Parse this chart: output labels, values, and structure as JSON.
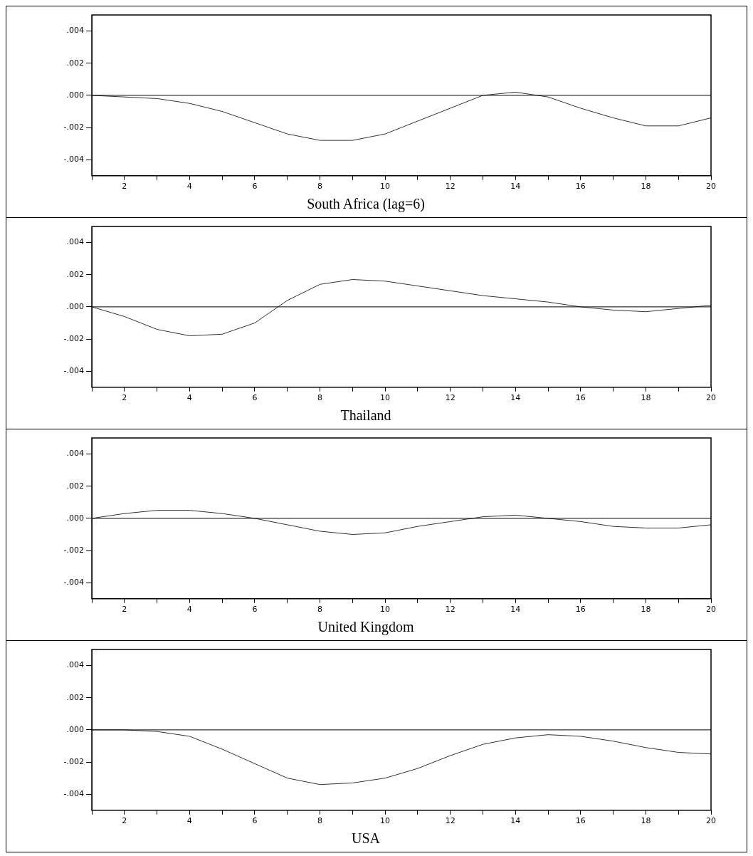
{
  "chart_data": [
    {
      "type": "line",
      "title": "South Africa (lag=6)",
      "x": [
        1,
        2,
        3,
        4,
        5,
        6,
        7,
        8,
        9,
        10,
        11,
        12,
        13,
        14,
        15,
        16,
        17,
        18,
        19,
        20
      ],
      "series": [
        {
          "color": "#333333",
          "values": [
            0,
            -0.0001,
            -0.0002,
            -0.0005,
            -0.001,
            -0.0017,
            -0.0024,
            -0.0028,
            -0.0028,
            -0.0024,
            -0.0016,
            -0.0008,
            0,
            0.0002,
            -0.0001,
            -0.0008,
            -0.0014,
            -0.0019,
            -0.0019,
            -0.0014
          ]
        }
      ],
      "xlim": [
        1,
        20
      ],
      "xticks": [
        {
          "value": 1,
          "label": null
        },
        2,
        {
          "value": 3,
          "label": null
        },
        4,
        {
          "value": 5,
          "label": null
        },
        6,
        {
          "value": 7,
          "label": null
        },
        8,
        {
          "value": 9,
          "label": null
        },
        10,
        {
          "value": 11,
          "label": null
        },
        12,
        {
          "value": 13,
          "label": null
        },
        14,
        {
          "value": 15,
          "label": null
        },
        16,
        {
          "value": 17,
          "label": null
        },
        18,
        {
          "value": 19,
          "label": null
        },
        20
      ],
      "ylim": [
        -0.005,
        0.005
      ],
      "yticks": [
        {
          "value": -0.004,
          "label": "-.004"
        },
        {
          "value": -0.002,
          "label": "-.002"
        },
        {
          "value": 0,
          "label": ".000"
        },
        {
          "value": 0.002,
          "label": ".002"
        },
        {
          "value": 0.004,
          "label": ".004"
        }
      ],
      "ref_lines": [
        {
          "axis": "y",
          "value": 0,
          "color": "#000000"
        }
      ],
      "grid": false,
      "legend": false,
      "marker": "none",
      "line_style": "solid"
    },
    {
      "type": "line",
      "title": "Thailand",
      "x": [
        1,
        2,
        3,
        4,
        5,
        6,
        7,
        8,
        9,
        10,
        11,
        12,
        13,
        14,
        15,
        16,
        17,
        18,
        19,
        20
      ],
      "series": [
        {
          "color": "#333333",
          "values": [
            0,
            -0.0006,
            -0.0014,
            -0.0018,
            -0.0017,
            -0.001,
            0.0004,
            0.0014,
            0.0017,
            0.0016,
            0.0013,
            0.001,
            0.0007,
            0.0005,
            0.0003,
            0,
            -0.0002,
            -0.0003,
            -0.0001,
            0.0001
          ]
        }
      ],
      "xlim": [
        1,
        20
      ],
      "xticks": [
        {
          "value": 1,
          "label": null
        },
        2,
        {
          "value": 3,
          "label": null
        },
        4,
        {
          "value": 5,
          "label": null
        },
        6,
        {
          "value": 7,
          "label": null
        },
        8,
        {
          "value": 9,
          "label": null
        },
        10,
        {
          "value": 11,
          "label": null
        },
        12,
        {
          "value": 13,
          "label": null
        },
        14,
        {
          "value": 15,
          "label": null
        },
        16,
        {
          "value": 17,
          "label": null
        },
        18,
        {
          "value": 19,
          "label": null
        },
        20
      ],
      "ylim": [
        -0.005,
        0.005
      ],
      "yticks": [
        {
          "value": -0.004,
          "label": "-.004"
        },
        {
          "value": -0.002,
          "label": "-.002"
        },
        {
          "value": 0,
          "label": ".000"
        },
        {
          "value": 0.002,
          "label": ".002"
        },
        {
          "value": 0.004,
          "label": ".004"
        }
      ],
      "ref_lines": [
        {
          "axis": "y",
          "value": 0,
          "color": "#000000"
        }
      ],
      "grid": false,
      "legend": false,
      "marker": "none",
      "line_style": "solid"
    },
    {
      "type": "line",
      "title": "United Kingdom",
      "x": [
        1,
        2,
        3,
        4,
        5,
        6,
        7,
        8,
        9,
        10,
        11,
        12,
        13,
        14,
        15,
        16,
        17,
        18,
        19,
        20
      ],
      "series": [
        {
          "color": "#333333",
          "values": [
            0,
            0.0003,
            0.0005,
            0.0005,
            0.0003,
            0,
            -0.0004,
            -0.0008,
            -0.001,
            -0.0009,
            -0.0005,
            -0.0002,
            0.0001,
            0.0002,
            0,
            -0.0002,
            -0.0005,
            -0.0006,
            -0.0006,
            -0.0004
          ]
        }
      ],
      "xlim": [
        1,
        20
      ],
      "xticks": [
        {
          "value": 1,
          "label": null
        },
        2,
        {
          "value": 3,
          "label": null
        },
        4,
        {
          "value": 5,
          "label": null
        },
        6,
        {
          "value": 7,
          "label": null
        },
        8,
        {
          "value": 9,
          "label": null
        },
        10,
        {
          "value": 11,
          "label": null
        },
        12,
        {
          "value": 13,
          "label": null
        },
        14,
        {
          "value": 15,
          "label": null
        },
        16,
        {
          "value": 17,
          "label": null
        },
        18,
        {
          "value": 19,
          "label": null
        },
        20
      ],
      "ylim": [
        -0.005,
        0.005
      ],
      "yticks": [
        {
          "value": -0.004,
          "label": "-.004"
        },
        {
          "value": -0.002,
          "label": "-.002"
        },
        {
          "value": 0,
          "label": ".000"
        },
        {
          "value": 0.002,
          "label": ".002"
        },
        {
          "value": 0.004,
          "label": ".004"
        }
      ],
      "ref_lines": [
        {
          "axis": "y",
          "value": 0,
          "color": "#000000"
        }
      ],
      "grid": false,
      "legend": false,
      "marker": "none",
      "line_style": "solid"
    },
    {
      "type": "line",
      "title": "USA",
      "x": [
        1,
        2,
        3,
        4,
        5,
        6,
        7,
        8,
        9,
        10,
        11,
        12,
        13,
        14,
        15,
        16,
        17,
        18,
        19,
        20
      ],
      "series": [
        {
          "color": "#333333",
          "values": [
            0,
            0,
            -0.0001,
            -0.0004,
            -0.0012,
            -0.0021,
            -0.003,
            -0.0034,
            -0.0033,
            -0.003,
            -0.0024,
            -0.0016,
            -0.0009,
            -0.0005,
            -0.0003,
            -0.0004,
            -0.0007,
            -0.0011,
            -0.0014,
            -0.0015
          ]
        }
      ],
      "xlim": [
        1,
        20
      ],
      "xticks": [
        {
          "value": 1,
          "label": null
        },
        2,
        {
          "value": 3,
          "label": null
        },
        4,
        {
          "value": 5,
          "label": null
        },
        6,
        {
          "value": 7,
          "label": null
        },
        8,
        {
          "value": 9,
          "label": null
        },
        10,
        {
          "value": 11,
          "label": null
        },
        12,
        {
          "value": 13,
          "label": null
        },
        14,
        {
          "value": 15,
          "label": null
        },
        16,
        {
          "value": 17,
          "label": null
        },
        18,
        {
          "value": 19,
          "label": null
        },
        20
      ],
      "ylim": [
        -0.005,
        0.005
      ],
      "yticks": [
        {
          "value": -0.004,
          "label": "-.004"
        },
        {
          "value": -0.002,
          "label": "-.002"
        },
        {
          "value": 0,
          "label": ".000"
        },
        {
          "value": 0.002,
          "label": ".002"
        },
        {
          "value": 0.004,
          "label": ".004"
        }
      ],
      "ref_lines": [
        {
          "axis": "y",
          "value": 0,
          "color": "#000000"
        }
      ],
      "grid": false,
      "legend": false,
      "marker": "none",
      "line_style": "solid"
    }
  ]
}
